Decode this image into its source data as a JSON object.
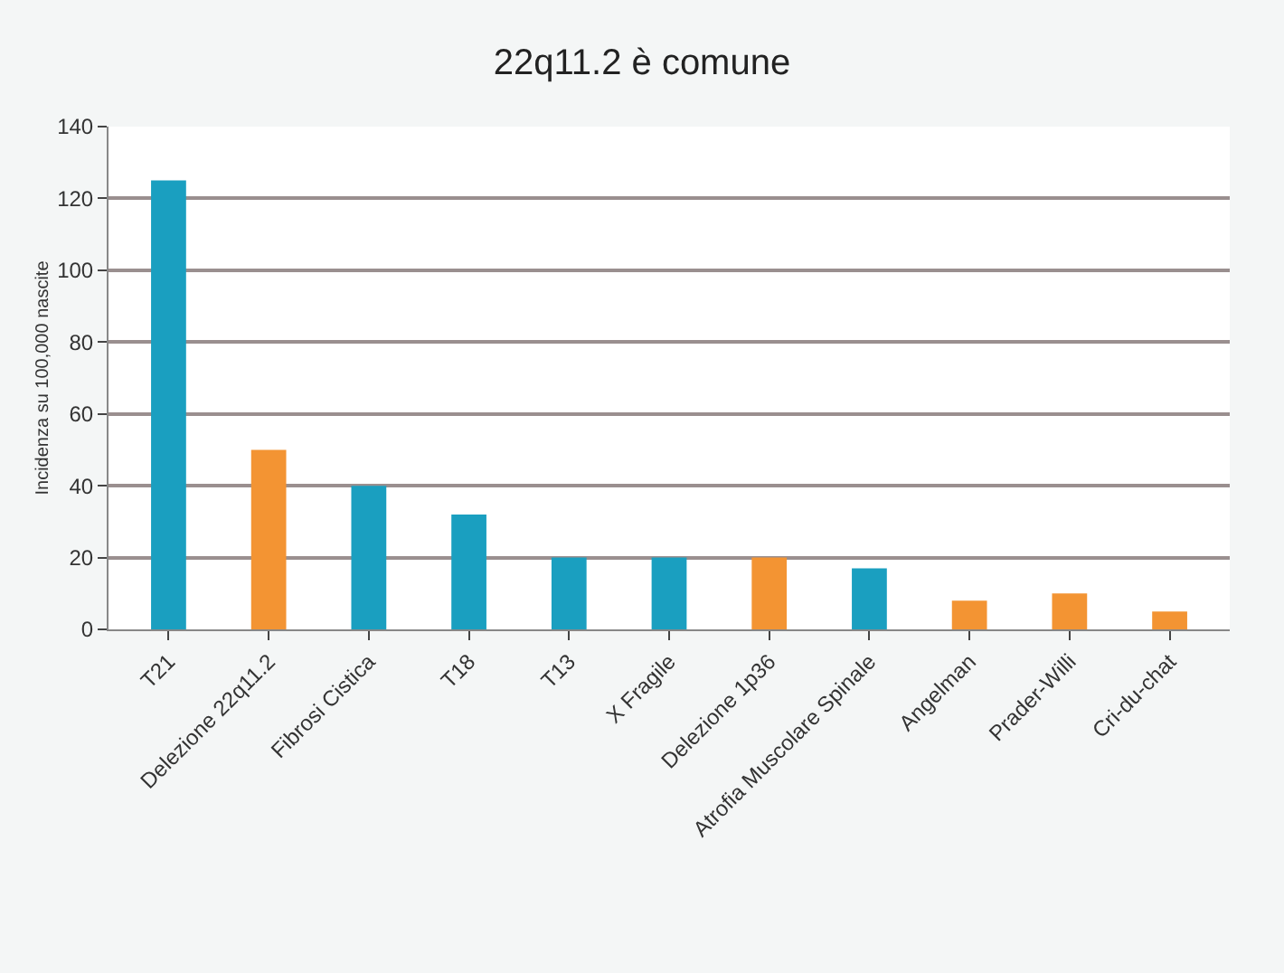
{
  "chart_data": {
    "type": "bar",
    "title": "22q11.2 è comune",
    "ylabel": "Incidenza su 100,000 nascite",
    "categories": [
      "T21",
      "Delezione 22q11.2",
      "Fibrosi Cistica",
      "T18",
      "T13",
      "X Fragile",
      "Delezione 1p36",
      "Atrofia Muscolare Spinale",
      "Angelman",
      "Prader-Willi",
      "Cri-du-chat"
    ],
    "values": [
      125,
      50,
      40,
      32,
      20,
      20,
      20,
      17,
      8,
      10,
      5
    ],
    "colors": [
      "#1a9fc0",
      "#f39433",
      "#1a9fc0",
      "#1a9fc0",
      "#1a9fc0",
      "#1a9fc0",
      "#f39433",
      "#1a9fc0",
      "#f39433",
      "#f39433",
      "#f39433"
    ],
    "ylim": [
      0,
      140
    ],
    "yticks": [
      0,
      20,
      40,
      60,
      80,
      100,
      120,
      140
    ],
    "grid": "y"
  }
}
